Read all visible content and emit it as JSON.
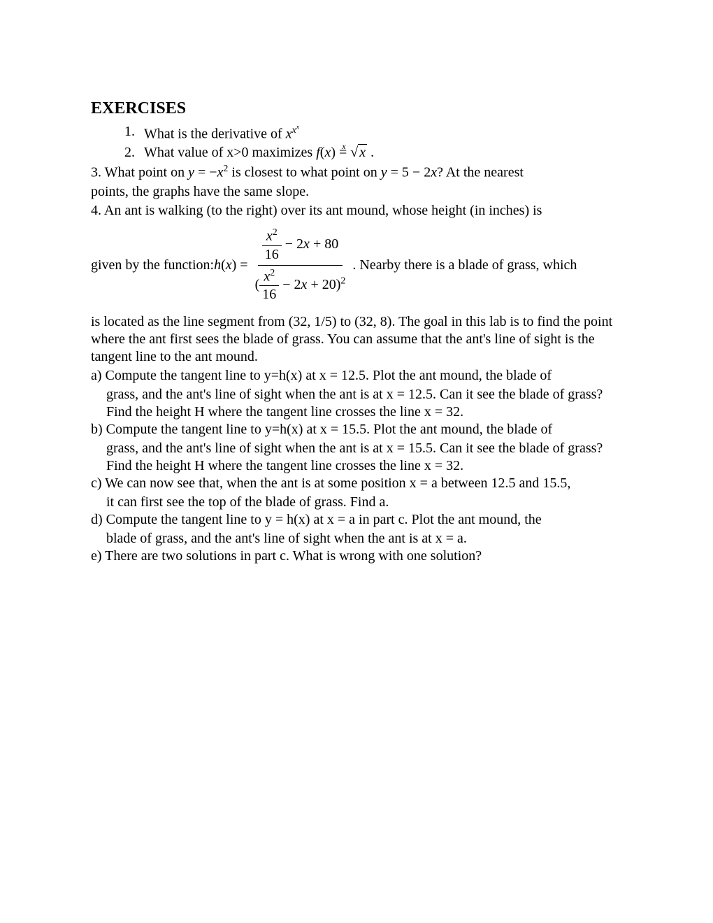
{
  "title": "EXERCISES",
  "items": {
    "n1": "1.",
    "q1a": "What is the derivative of ",
    "q1m_base": "x",
    "q1m_exp1": "x",
    "q1m_exp2": "x",
    "n2": "2.",
    "q2a": "What value of x>0 maximizes ",
    "q2b": "f",
    "q2c": "(",
    "q2d": "x",
    "q2e": ") = ",
    "q2root": "x",
    "q2idx": "x",
    "q2f": ".",
    "n3": "3.",
    "q3a": "What point on ",
    "q3b": "y",
    "q3c": " = −",
    "q3d": "x",
    "q3e": "2",
    "q3f": " is closest to what point on ",
    "q3g": "y",
    "q3h": " = 5 − 2",
    "q3i": "x",
    "q3j": "? At the nearest",
    "q3k": "points, the graphs have the same slope.",
    "n4": "4.",
    "q4a": "An ant is walking (to the right) over its ant mound, whose height (in inches) is",
    "q4b": "given by the function: ",
    "q4h": "h",
    "q4p1": "(",
    "q4x": "x",
    "q4p2": ") =",
    "frac_num_x": "x",
    "frac_num_2": "2",
    "frac_num_16": "16",
    "frac_num_rest": " − 2",
    "frac_num_x2": "x",
    "frac_num_80": " + 80",
    "frac_den_open": "(",
    "frac_den_x": "x",
    "frac_den_2": "2",
    "frac_den_16": "16",
    "frac_den_mid": " − 2",
    "frac_den_x2": "x",
    "frac_den_20": " + 20)",
    "frac_den_sq": "2",
    "q4c": ". Nearby there is a blade of grass, which",
    "q4d": "is located as the line segment from (32, 1/5) to (32, 8). The goal in this lab is to find the point where the ant first sees the blade of grass. You can assume that the ant's line of sight is the tangent line to the ant mound.",
    "a1": "a) Compute the tangent line to y=h(x) at x = 12.5. Plot the ant mound, the blade of",
    "a2": "grass, and the ant's line of sight when the ant is at x = 12.5. Can it see the blade of grass? Find the height H where the tangent line crosses the line x = 32.",
    "b1": "b) Compute the tangent line to y=h(x) at x = 15.5. Plot the ant mound, the blade of",
    "b2": "grass, and the ant's line of sight when the ant is at x = 15.5. Can it see the blade of grass? Find the height H where the tangent line crosses the line x = 32.",
    "c1": "c) We can now see that, when the ant is at some position x = a between 12.5 and 15.5,",
    "c2": "it can first see the top of the blade of grass. Find a.",
    "d1": "d) Compute the tangent line to y = h(x) at x = a in part c. Plot the ant mound, the",
    "d2": "blade of grass, and the ant's line of sight when the ant is at x = a.",
    "e1": "e) There are two solutions in part c. What is wrong with one solution?"
  }
}
